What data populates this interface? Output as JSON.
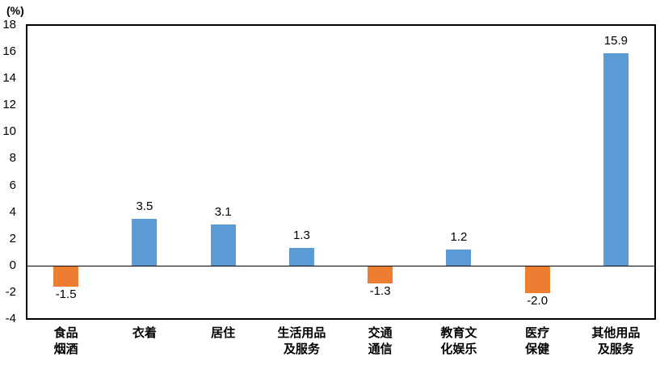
{
  "colors": {
    "positive_bar": "#5B9BD5",
    "negative_bar": "#ED7D31",
    "axis": "#000000"
  },
  "chart_data": {
    "type": "bar",
    "title": "",
    "ylabel": "(%)",
    "xlabel": "",
    "categories": [
      "食品烟酒",
      "衣着",
      "居住",
      "生活用品及服务",
      "交通通信",
      "教育文化娱乐",
      "医疗保健",
      "其他用品及服务"
    ],
    "category_lines": [
      [
        "食品",
        "烟酒"
      ],
      [
        "衣着"
      ],
      [
        "居住"
      ],
      [
        "生活用品",
        "及服务"
      ],
      [
        "交通",
        "通信"
      ],
      [
        "教育文",
        "化娱乐"
      ],
      [
        "医疗",
        "保健"
      ],
      [
        "其他用品",
        "及服务"
      ]
    ],
    "values": [
      -1.5,
      3.5,
      3.1,
      1.3,
      -1.3,
      1.2,
      -2.0,
      15.9
    ],
    "value_labels": [
      "-1.5",
      "3.5",
      "3.1",
      "1.3",
      "-1.3",
      "1.2",
      "-2.0",
      "15.9"
    ],
    "ylim": [
      -4,
      18
    ],
    "ytick_step": 2,
    "ytick_labels": [
      "18",
      "16",
      "14",
      "12",
      "10",
      "8",
      "6",
      "4",
      "2",
      "0",
      "-2",
      "-4"
    ],
    "grid": false,
    "legend": false
  }
}
